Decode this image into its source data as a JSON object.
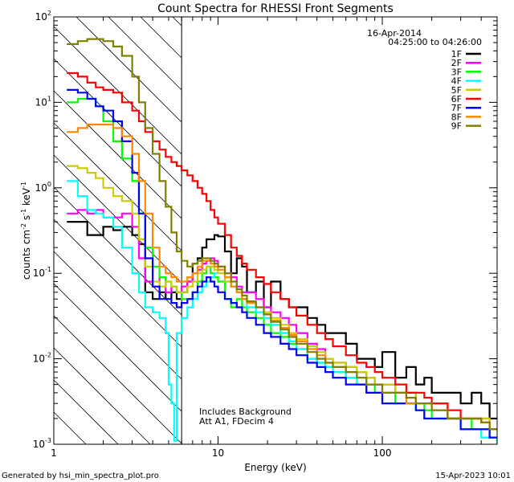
{
  "chart_data": {
    "type": "line",
    "title": "Count Spectra for RHESSI Front Segments",
    "xlabel": "Energy (keV)",
    "ylabel_main": "counts cm",
    "ylabel_sup1": "-2",
    "ylabel_mid": " s",
    "ylabel_sup2": "-1",
    "ylabel_mid2": " keV",
    "ylabel_sup3": "-1",
    "xscale": "log",
    "yscale": "log",
    "xlim": [
      1,
      500
    ],
    "ylim": [
      0.001,
      100
    ],
    "x_ticks": [
      {
        "value": 1,
        "label": "1"
      },
      {
        "value": 10,
        "label": "10"
      },
      {
        "value": 100,
        "label": "100"
      }
    ],
    "y_ticks": [
      {
        "value": 0.001,
        "base": "10",
        "exp": "-3"
      },
      {
        "value": 0.01,
        "base": "10",
        "exp": "-2"
      },
      {
        "value": 0.1,
        "base": "10",
        "exp": "-1"
      },
      {
        "value": 1,
        "base": "10",
        "exp": "0"
      },
      {
        "value": 10,
        "base": "10",
        "exp": "1"
      },
      {
        "value": 100,
        "base": "10",
        "exp": "2"
      }
    ],
    "date_label": "16-Apr-2014",
    "time_range_label": "04:25:00 to 04:26:00",
    "annotation_line1": "Includes Background",
    "annotation_line2": "Att A1, FDecim  4",
    "hatched_region_upper_energy": 6,
    "legend_position": "top-right",
    "series": [
      {
        "name": "1F",
        "color": "#000000",
        "x": [
          1.2,
          1.4,
          1.6,
          1.8,
          2.0,
          2.3,
          2.6,
          3.0,
          3.3,
          3.6,
          4.0,
          4.4,
          4.8,
          5.2,
          5.6,
          6.0,
          6.5,
          7.0,
          7.5,
          8.0,
          8.5,
          9.0,
          9.5,
          10,
          11,
          12,
          13,
          14,
          15,
          17,
          19,
          21,
          24,
          27,
          30,
          35,
          40,
          45,
          50,
          60,
          70,
          80,
          90,
          100,
          120,
          140,
          160,
          180,
          200,
          250,
          300,
          350,
          400,
          450,
          500
        ],
        "y": [
          0.4,
          0.4,
          0.28,
          0.28,
          0.35,
          0.32,
          0.35,
          0.28,
          0.22,
          0.06,
          0.05,
          0.06,
          0.05,
          0.06,
          0.05,
          0.06,
          0.08,
          0.13,
          0.15,
          0.2,
          0.25,
          0.25,
          0.28,
          0.27,
          0.18,
          0.1,
          0.15,
          0.12,
          0.06,
          0.08,
          0.04,
          0.08,
          0.05,
          0.04,
          0.04,
          0.03,
          0.025,
          0.02,
          0.02,
          0.015,
          0.01,
          0.01,
          0.008,
          0.012,
          0.006,
          0.008,
          0.005,
          0.006,
          0.004,
          0.004,
          0.003,
          0.004,
          0.003,
          0.002,
          0.002
        ]
      },
      {
        "name": "2F",
        "color": "#ff00ff",
        "x": [
          1.2,
          1.4,
          1.6,
          1.8,
          2.0,
          2.3,
          2.6,
          3.0,
          3.3,
          3.6,
          4.0,
          4.4,
          4.8,
          5.2,
          5.6,
          6.0,
          6.5,
          7.0,
          7.5,
          8.0,
          8.5,
          9.0,
          9.5,
          10,
          11,
          12,
          13,
          14,
          15,
          17,
          19,
          21,
          24,
          27,
          30,
          35,
          40,
          45,
          50,
          60,
          70,
          80,
          90,
          100,
          120,
          140,
          160,
          180,
          200,
          250,
          300,
          350,
          400,
          450,
          500
        ],
        "y": [
          0.5,
          0.55,
          0.5,
          0.55,
          0.45,
          0.45,
          0.5,
          0.35,
          0.15,
          0.08,
          0.07,
          0.09,
          0.06,
          0.07,
          0.06,
          0.07,
          0.08,
          0.1,
          0.11,
          0.13,
          0.14,
          0.15,
          0.14,
          0.12,
          0.1,
          0.09,
          0.07,
          0.06,
          0.06,
          0.05,
          0.04,
          0.035,
          0.03,
          0.025,
          0.02,
          0.015,
          0.013,
          0.01,
          0.009,
          0.008,
          0.007,
          0.006,
          0.005,
          0.005,
          0.004,
          0.004,
          0.003,
          0.003,
          0.003,
          0.002,
          0.002,
          0.002,
          0.002,
          0.0015,
          0.0015
        ]
      },
      {
        "name": "3F",
        "color": "#00ff00",
        "x": [
          1.2,
          1.4,
          1.6,
          1.8,
          2.0,
          2.3,
          2.6,
          3.0,
          3.3,
          3.6,
          4.0,
          4.4,
          4.8,
          5.2,
          5.6,
          6.0,
          6.5,
          7.0,
          7.5,
          8.0,
          8.5,
          9.0,
          9.5,
          10,
          11,
          12,
          13,
          14,
          15,
          17,
          19,
          21,
          24,
          27,
          30,
          35,
          40,
          45,
          50,
          60,
          70,
          80,
          90,
          100,
          120,
          140,
          160,
          180,
          200,
          250,
          300,
          350,
          400,
          450,
          500
        ],
        "y": [
          10,
          11,
          11,
          9,
          6,
          3.5,
          2.2,
          1.2,
          0.5,
          0.2,
          0.12,
          0.09,
          0.08,
          0.07,
          0.06,
          0.05,
          0.05,
          0.06,
          0.08,
          0.1,
          0.12,
          0.1,
          0.09,
          0.08,
          0.05,
          0.04,
          0.05,
          0.04,
          0.035,
          0.03,
          0.025,
          0.02,
          0.018,
          0.015,
          0.013,
          0.01,
          0.009,
          0.008,
          0.007,
          0.006,
          0.005,
          0.005,
          0.004,
          0.004,
          0.003,
          0.003,
          0.003,
          0.0025,
          0.002,
          0.002,
          0.002,
          0.0015,
          0.0015,
          0.0012,
          0.0012
        ]
      },
      {
        "name": "4F",
        "color": "#00ffff",
        "x": [
          1.2,
          1.4,
          1.6,
          1.8,
          2.0,
          2.3,
          2.6,
          3.0,
          3.3,
          3.6,
          4.0,
          4.4,
          4.8,
          5.0,
          5.2,
          5.4,
          5.6,
          6.0,
          6.5,
          7.0,
          7.5,
          8.0,
          8.5,
          9.0,
          9.5,
          10,
          11,
          12,
          13,
          14,
          15,
          17,
          19,
          21,
          24,
          27,
          30,
          35,
          40,
          45,
          50,
          60,
          70,
          80,
          90,
          100,
          120,
          140,
          160,
          180,
          200,
          250,
          300,
          350,
          400,
          450,
          500
        ],
        "y": [
          1.2,
          0.8,
          0.55,
          0.5,
          0.45,
          0.35,
          0.2,
          0.1,
          0.06,
          0.04,
          0.035,
          0.03,
          0.02,
          0.005,
          0.003,
          0.0011,
          0.02,
          0.03,
          0.04,
          0.05,
          0.06,
          0.07,
          0.08,
          0.09,
          0.1,
          0.1,
          0.08,
          0.07,
          0.06,
          0.05,
          0.04,
          0.035,
          0.03,
          0.025,
          0.02,
          0.016,
          0.013,
          0.01,
          0.009,
          0.008,
          0.007,
          0.006,
          0.005,
          0.004,
          0.004,
          0.003,
          0.003,
          0.003,
          0.0025,
          0.002,
          0.002,
          0.002,
          0.0015,
          0.0015,
          0.0012,
          0.0012,
          0.001
        ]
      },
      {
        "name": "5F",
        "color": "#cccc00",
        "x": [
          1.2,
          1.4,
          1.6,
          1.8,
          2.0,
          2.3,
          2.6,
          3.0,
          3.3,
          3.6,
          4.0,
          4.4,
          4.8,
          5.2,
          5.6,
          6.0,
          6.5,
          7.0,
          7.5,
          8.0,
          8.5,
          9.0,
          9.5,
          10,
          11,
          12,
          13,
          14,
          15,
          17,
          19,
          21,
          24,
          27,
          30,
          35,
          40,
          45,
          50,
          60,
          70,
          80,
          90,
          100,
          120,
          140,
          160,
          180,
          200,
          250,
          300,
          350,
          400,
          450,
          500
        ],
        "y": [
          1.8,
          1.7,
          1.5,
          1.3,
          1.0,
          0.8,
          0.7,
          0.5,
          0.25,
          0.12,
          0.08,
          0.07,
          0.08,
          0.07,
          0.06,
          0.06,
          0.07,
          0.08,
          0.1,
          0.11,
          0.12,
          0.12,
          0.11,
          0.1,
          0.08,
          0.07,
          0.06,
          0.05,
          0.045,
          0.04,
          0.035,
          0.03,
          0.025,
          0.02,
          0.017,
          0.014,
          0.012,
          0.01,
          0.009,
          0.008,
          0.007,
          0.006,
          0.005,
          0.005,
          0.004,
          0.004,
          0.003,
          0.003,
          0.003,
          0.002,
          0.002,
          0.002,
          0.002,
          0.0015,
          0.0015
        ]
      },
      {
        "name": "6F",
        "color": "#ff0000",
        "x": [
          1.2,
          1.4,
          1.6,
          1.8,
          2.0,
          2.3,
          2.6,
          3.0,
          3.3,
          3.6,
          4.0,
          4.4,
          4.8,
          5.2,
          5.6,
          6.0,
          6.5,
          7.0,
          7.5,
          8.0,
          8.5,
          9.0,
          9.5,
          10,
          11,
          12,
          13,
          14,
          15,
          17,
          19,
          21,
          24,
          27,
          30,
          35,
          40,
          45,
          50,
          60,
          70,
          80,
          90,
          100,
          120,
          140,
          160,
          180,
          200,
          250,
          300,
          350,
          400,
          450,
          500
        ],
        "y": [
          22,
          20,
          17,
          15,
          14,
          13,
          10,
          8,
          6,
          4.5,
          3.5,
          2.8,
          2.3,
          2,
          1.8,
          1.6,
          1.4,
          1.2,
          1.0,
          0.85,
          0.7,
          0.55,
          0.45,
          0.38,
          0.28,
          0.2,
          0.16,
          0.13,
          0.11,
          0.09,
          0.075,
          0.06,
          0.05,
          0.04,
          0.032,
          0.025,
          0.02,
          0.017,
          0.014,
          0.011,
          0.009,
          0.008,
          0.007,
          0.006,
          0.005,
          0.004,
          0.004,
          0.0035,
          0.003,
          0.0025,
          0.002,
          0.002,
          0.0018,
          0.0015,
          0.0015
        ]
      },
      {
        "name": "7F",
        "color": "#0000ff",
        "x": [
          1.2,
          1.4,
          1.6,
          1.8,
          2.0,
          2.3,
          2.6,
          3.0,
          3.3,
          3.6,
          4.0,
          4.4,
          4.8,
          5.2,
          5.6,
          6.0,
          6.5,
          7.0,
          7.5,
          8.0,
          8.5,
          9.0,
          9.5,
          10,
          11,
          12,
          13,
          14,
          15,
          17,
          19,
          21,
          24,
          27,
          30,
          35,
          40,
          45,
          50,
          60,
          70,
          80,
          90,
          100,
          120,
          140,
          160,
          180,
          200,
          250,
          300,
          350,
          400,
          450,
          500
        ],
        "y": [
          14,
          13,
          11,
          9,
          8,
          6,
          3.5,
          1.5,
          0.5,
          0.15,
          0.07,
          0.05,
          0.05,
          0.045,
          0.04,
          0.045,
          0.05,
          0.06,
          0.07,
          0.08,
          0.09,
          0.08,
          0.07,
          0.06,
          0.05,
          0.045,
          0.04,
          0.035,
          0.03,
          0.025,
          0.02,
          0.018,
          0.015,
          0.013,
          0.011,
          0.009,
          0.008,
          0.007,
          0.006,
          0.005,
          0.005,
          0.004,
          0.004,
          0.003,
          0.003,
          0.003,
          0.0025,
          0.002,
          0.002,
          0.002,
          0.0015,
          0.0015,
          0.0015,
          0.0012,
          0.0012
        ]
      },
      {
        "name": "8F",
        "color": "#ff8800",
        "x": [
          1.2,
          1.4,
          1.6,
          1.8,
          2.0,
          2.3,
          2.6,
          3.0,
          3.3,
          3.6,
          4.0,
          4.4,
          4.8,
          5.2,
          5.6,
          6.0,
          6.5,
          7.0,
          7.5,
          8.0,
          8.5,
          9.0,
          9.5,
          10,
          11,
          12,
          13,
          14,
          15,
          17,
          19,
          21,
          24,
          27,
          30,
          35,
          40,
          45,
          50,
          60,
          70,
          80,
          90,
          100,
          120,
          140,
          160,
          180,
          200,
          250,
          300,
          350,
          400,
          450,
          500
        ],
        "y": [
          4.5,
          5,
          5.5,
          5.5,
          5.5,
          5,
          4,
          2.5,
          1.2,
          0.5,
          0.2,
          0.12,
          0.1,
          0.09,
          0.08,
          0.08,
          0.09,
          0.1,
          0.12,
          0.14,
          0.14,
          0.13,
          0.12,
          0.11,
          0.09,
          0.07,
          0.06,
          0.05,
          0.045,
          0.04,
          0.033,
          0.028,
          0.023,
          0.019,
          0.016,
          0.013,
          0.011,
          0.009,
          0.008,
          0.007,
          0.006,
          0.005,
          0.005,
          0.004,
          0.004,
          0.003,
          0.003,
          0.003,
          0.0025,
          0.002,
          0.002,
          0.002,
          0.0018,
          0.0015,
          0.0015
        ]
      },
      {
        "name": "9F",
        "color": "#808000",
        "x": [
          1.2,
          1.4,
          1.6,
          1.8,
          2.0,
          2.3,
          2.6,
          3.0,
          3.3,
          3.6,
          4.0,
          4.4,
          4.8,
          5.2,
          5.6,
          6.0,
          6.5,
          7.0,
          7.5,
          8.0,
          8.5,
          9.0,
          9.5,
          10,
          11,
          12,
          13,
          14,
          15,
          17,
          19,
          21,
          24,
          27,
          30,
          35,
          40,
          45,
          50,
          60,
          70,
          80,
          90,
          100,
          120,
          140,
          160,
          180,
          200,
          250,
          300,
          350,
          400,
          450,
          500
        ],
        "y": [
          48,
          52,
          55,
          55,
          52,
          45,
          35,
          20,
          10,
          5,
          2.5,
          1.2,
          0.6,
          0.3,
          0.18,
          0.14,
          0.12,
          0.13,
          0.14,
          0.15,
          0.15,
          0.14,
          0.13,
          0.12,
          0.1,
          0.08,
          0.065,
          0.055,
          0.047,
          0.04,
          0.033,
          0.027,
          0.022,
          0.018,
          0.015,
          0.012,
          0.01,
          0.009,
          0.008,
          0.007,
          0.006,
          0.005,
          0.005,
          0.004,
          0.004,
          0.0035,
          0.003,
          0.003,
          0.0025,
          0.002,
          0.002,
          0.002,
          0.0018,
          0.0015,
          0.0015
        ]
      }
    ]
  },
  "footer": {
    "generated_by": "Generated by hsi_min_spectra_plot.pro",
    "timestamp": "15-Apr-2023 10:01"
  }
}
